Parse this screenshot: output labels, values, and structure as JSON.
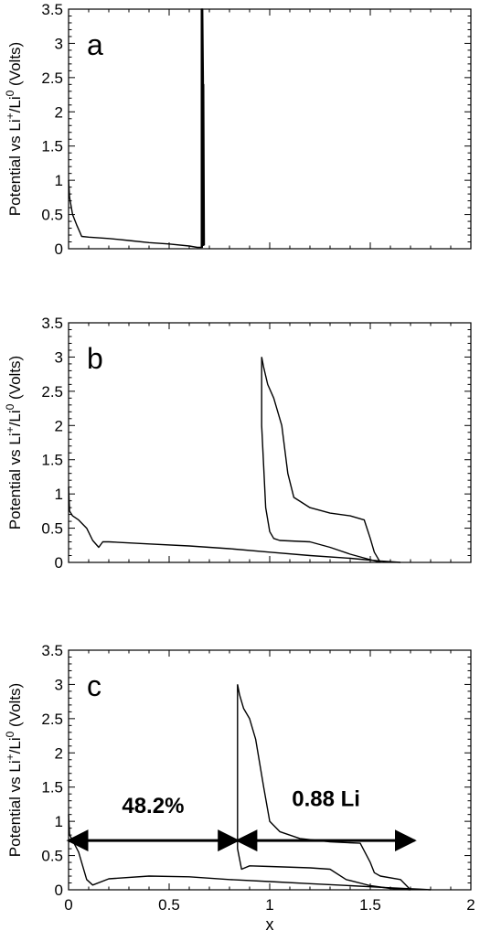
{
  "chart_data": [
    {
      "type": "line",
      "panel_label": "a",
      "xlabel": "",
      "ylabel_parts": {
        "pre": "Potential vs  Li",
        "sup1": "+",
        "mid": "/Li",
        "sup2": "0",
        "post": "  (Volts)"
      },
      "ylim": [
        0,
        3.5
      ],
      "xlim": [
        0,
        2
      ],
      "yticks": [
        "0",
        "0.5",
        "1",
        "1.5",
        "2",
        "2.5",
        "3",
        "3.5"
      ],
      "xticks": [],
      "color": "#000000",
      "series": [
        {
          "x": [
            0.0,
            0.005,
            0.02,
            0.04,
            0.055,
            0.065,
            0.1,
            0.2,
            0.3,
            0.4,
            0.5,
            0.6,
            0.64,
            0.66
          ],
          "y": [
            1.0,
            0.75,
            0.5,
            0.35,
            0.25,
            0.18,
            0.17,
            0.15,
            0.12,
            0.09,
            0.07,
            0.04,
            0.02,
            0.02
          ]
        },
        {
          "x": [
            0.66,
            0.66,
            0.662,
            0.662,
            0.665,
            0.665,
            0.667,
            0.67,
            0.67,
            0.672,
            0.672,
            0.675
          ],
          "y": [
            0.02,
            3.5,
            3.5,
            0.02,
            0.02,
            3.5,
            3.5,
            2.5,
            0.05,
            0.05,
            2.4,
            0.05
          ]
        }
      ]
    },
    {
      "type": "line",
      "panel_label": "b",
      "xlabel": "",
      "ylabel_parts": {
        "pre": "Potential vs  Li",
        "sup1": "+",
        "mid": "/Li",
        "sup2": "0",
        "post": "  (Volts)"
      },
      "ylim": [
        0,
        3.5
      ],
      "xlim": [
        0,
        2
      ],
      "yticks": [
        "0",
        "0.5",
        "1",
        "1.5",
        "2",
        "2.5",
        "3",
        "3.5"
      ],
      "xticks": [],
      "color": "#000000",
      "series": [
        {
          "x": [
            0.0,
            0.005,
            0.02,
            0.05,
            0.09,
            0.12,
            0.15,
            0.17,
            0.2,
            0.4,
            0.6,
            0.8,
            1.0,
            1.2,
            1.4,
            1.55,
            1.65
          ],
          "y": [
            1.1,
            0.75,
            0.68,
            0.62,
            0.5,
            0.32,
            0.22,
            0.3,
            0.3,
            0.27,
            0.24,
            0.2,
            0.15,
            0.1,
            0.06,
            0.02,
            0.0
          ]
        },
        {
          "x": [
            0.96,
            0.97,
            0.99,
            1.02,
            1.06,
            1.09,
            1.12,
            1.2,
            1.3,
            1.4,
            1.47,
            1.5,
            1.52,
            1.54,
            1.55
          ],
          "y": [
            3.0,
            2.85,
            2.6,
            2.4,
            2.0,
            1.3,
            0.95,
            0.8,
            0.72,
            0.68,
            0.62,
            0.35,
            0.15,
            0.05,
            0.0
          ]
        },
        {
          "x": [
            0.96,
            0.96,
            0.98,
            1.0,
            1.02,
            1.05,
            1.2,
            1.3,
            1.4,
            1.5,
            1.55
          ],
          "y": [
            3.0,
            2.0,
            0.8,
            0.45,
            0.35,
            0.32,
            0.3,
            0.22,
            0.12,
            0.04,
            0.0
          ]
        }
      ]
    },
    {
      "type": "line",
      "panel_label": "c",
      "xlabel": "x",
      "ylabel_parts": {
        "pre": "Potential vs  Li",
        "sup1": "+",
        "mid": "/Li",
        "sup2": "0",
        "post": "  (Volts)"
      },
      "ylim": [
        0,
        3.5
      ],
      "xlim": [
        0,
        2
      ],
      "yticks": [
        "0",
        "0.5",
        "1",
        "1.5",
        "2",
        "2.5",
        "3",
        "3.5"
      ],
      "xticks": [
        "0",
        "0.5",
        "1",
        "1.5",
        "2"
      ],
      "color": "#000000",
      "series": [
        {
          "x": [
            0.0,
            0.005,
            0.02,
            0.05,
            0.07,
            0.09,
            0.12,
            0.2,
            0.4,
            0.6,
            0.8,
            1.0,
            1.2,
            1.4,
            1.6,
            1.75,
            1.8
          ],
          "y": [
            1.1,
            0.8,
            0.72,
            0.55,
            0.35,
            0.15,
            0.07,
            0.16,
            0.2,
            0.19,
            0.15,
            0.12,
            0.09,
            0.06,
            0.03,
            0.01,
            0.0
          ]
        },
        {
          "x": [
            0.84,
            0.85,
            0.87,
            0.9,
            0.93,
            0.97,
            1.0,
            1.05,
            1.15,
            1.3,
            1.45,
            1.5,
            1.52,
            1.55,
            1.65,
            1.7
          ],
          "y": [
            3.0,
            2.85,
            2.65,
            2.5,
            2.2,
            1.5,
            1.0,
            0.85,
            0.75,
            0.7,
            0.68,
            0.4,
            0.25,
            0.2,
            0.15,
            0.0
          ]
        },
        {
          "x": [
            0.84,
            0.84,
            0.86,
            0.9,
            1.0,
            1.2,
            1.3,
            1.38,
            1.5,
            1.6,
            1.7
          ],
          "y": [
            3.0,
            0.6,
            0.3,
            0.35,
            0.34,
            0.32,
            0.3,
            0.15,
            0.06,
            0.02,
            0.0
          ]
        }
      ],
      "annotations": [
        {
          "text": "48.2%",
          "x_from": 0.0,
          "x_to": 0.84,
          "y": 0.72,
          "label_x": 0.42,
          "label_y": 1.12
        },
        {
          "text": "0.88 Li",
          "x_from": 0.84,
          "x_to": 1.72,
          "y": 0.72,
          "label_x": 1.28,
          "label_y": 1.22
        }
      ]
    }
  ]
}
